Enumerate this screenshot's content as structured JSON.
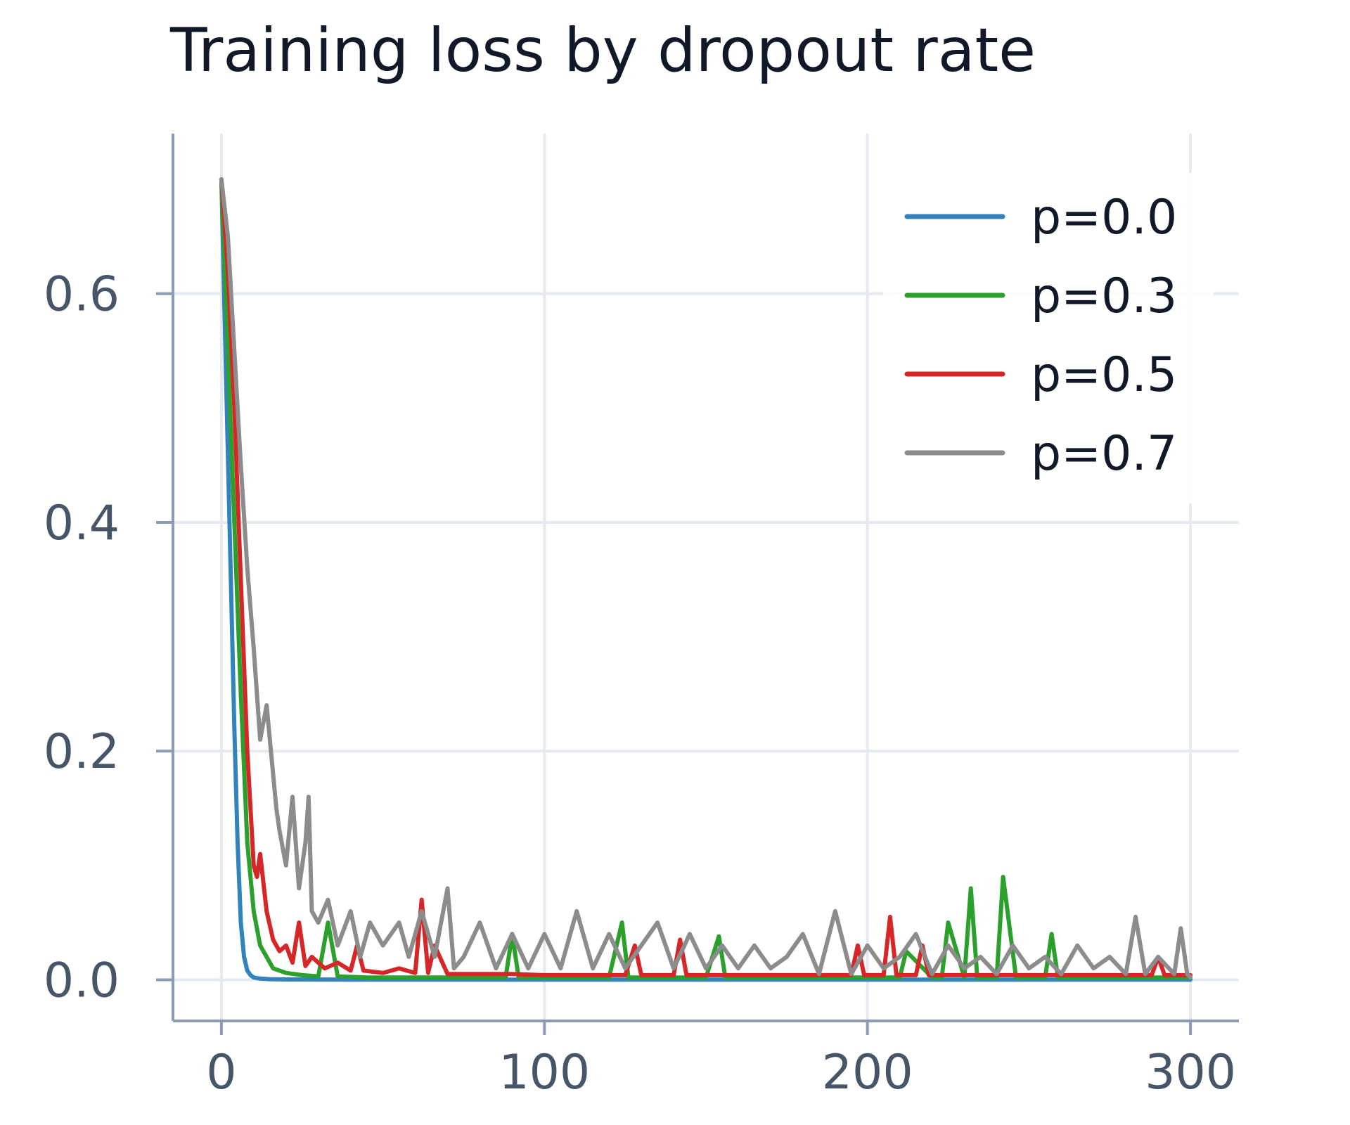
{
  "chart_data": {
    "type": "line",
    "title": "Training loss by dropout rate",
    "xlabel": "",
    "ylabel": "",
    "xlim": [
      -15,
      315
    ],
    "ylim": [
      -0.036,
      0.74
    ],
    "xticks": [
      0,
      100,
      200,
      300
    ],
    "yticks": [
      0.0,
      0.2,
      0.4,
      0.6
    ],
    "xtick_labels": [
      "0",
      "100",
      "200",
      "300"
    ],
    "ytick_labels": [
      "0.0",
      "0.2",
      "0.4",
      "0.6"
    ],
    "grid": true,
    "legend_position": "top-right",
    "series": [
      {
        "name": "p=0.0",
        "color": "#3182bd",
        "x": [
          0,
          1,
          2,
          3,
          4,
          5,
          6,
          7,
          8,
          9,
          10,
          12,
          15,
          20,
          30,
          50,
          100,
          150,
          200,
          250,
          300
        ],
        "y": [
          0.7,
          0.58,
          0.46,
          0.34,
          0.22,
          0.12,
          0.05,
          0.02,
          0.008,
          0.004,
          0.002,
          0.001,
          0.0005,
          0.0003,
          0.0002,
          0.0001,
          0.0001,
          0.0001,
          0.0001,
          0.0001,
          0.0001
        ]
      },
      {
        "name": "p=0.3",
        "color": "#2ca02c",
        "x": [
          0,
          2,
          4,
          6,
          8,
          10,
          12,
          14,
          16,
          18,
          20,
          25,
          30,
          33,
          36,
          45,
          60,
          75,
          88,
          90,
          92,
          100,
          110,
          120,
          124,
          126,
          135,
          145,
          150,
          154,
          156,
          165,
          180,
          195,
          205,
          210,
          212,
          220,
          223,
          225,
          230,
          232,
          234,
          238,
          240,
          242,
          246,
          255,
          257,
          259,
          265,
          275,
          285,
          300
        ],
        "y": [
          0.7,
          0.55,
          0.4,
          0.25,
          0.12,
          0.06,
          0.03,
          0.02,
          0.01,
          0.008,
          0.006,
          0.004,
          0.003,
          0.05,
          0.003,
          0.002,
          0.002,
          0.002,
          0.002,
          0.04,
          0.002,
          0.002,
          0.002,
          0.002,
          0.05,
          0.002,
          0.002,
          0.002,
          0.002,
          0.038,
          0.002,
          0.002,
          0.002,
          0.002,
          0.002,
          0.002,
          0.025,
          0.002,
          0.002,
          0.05,
          0.002,
          0.08,
          0.002,
          0.002,
          0.002,
          0.09,
          0.002,
          0.002,
          0.04,
          0.002,
          0.002,
          0.002,
          0.002,
          0.002
        ]
      },
      {
        "name": "p=0.5",
        "color": "#d62728",
        "x": [
          0,
          2,
          4,
          6,
          8,
          10,
          11,
          12,
          14,
          16,
          18,
          20,
          22,
          24,
          26,
          28,
          32,
          36,
          40,
          42,
          44,
          50,
          55,
          60,
          62,
          64,
          66,
          70,
          80,
          90,
          100,
          110,
          125,
          128,
          130,
          140,
          142,
          144,
          150,
          160,
          175,
          190,
          195,
          197,
          199,
          205,
          207,
          209,
          215,
          217,
          219,
          225,
          240,
          255,
          270,
          288,
          290,
          292,
          300
        ],
        "y": [
          0.7,
          0.62,
          0.5,
          0.35,
          0.2,
          0.1,
          0.09,
          0.11,
          0.06,
          0.035,
          0.025,
          0.03,
          0.015,
          0.05,
          0.012,
          0.02,
          0.01,
          0.015,
          0.008,
          0.03,
          0.008,
          0.006,
          0.01,
          0.006,
          0.07,
          0.006,
          0.03,
          0.005,
          0.005,
          0.005,
          0.004,
          0.004,
          0.004,
          0.03,
          0.004,
          0.004,
          0.035,
          0.004,
          0.004,
          0.004,
          0.004,
          0.004,
          0.004,
          0.03,
          0.004,
          0.004,
          0.055,
          0.004,
          0.004,
          0.03,
          0.004,
          0.004,
          0.004,
          0.004,
          0.004,
          0.004,
          0.02,
          0.004,
          0.004
        ]
      },
      {
        "name": "p=0.7",
        "color": "#8c8c8c",
        "x": [
          0,
          2,
          4,
          6,
          8,
          10,
          12,
          14,
          16,
          17,
          18,
          20,
          22,
          24,
          26,
          27,
          28,
          30,
          33,
          36,
          40,
          43,
          46,
          50,
          55,
          58,
          62,
          66,
          70,
          72,
          75,
          80,
          85,
          90,
          95,
          100,
          105,
          110,
          115,
          120,
          125,
          130,
          135,
          140,
          145,
          150,
          155,
          160,
          165,
          170,
          175,
          180,
          185,
          190,
          195,
          200,
          205,
          210,
          215,
          220,
          225,
          230,
          235,
          240,
          245,
          250,
          255,
          260,
          265,
          270,
          275,
          280,
          283,
          286,
          290,
          295,
          297,
          299,
          300
        ],
        "y": [
          0.7,
          0.65,
          0.55,
          0.45,
          0.36,
          0.29,
          0.21,
          0.24,
          0.18,
          0.15,
          0.13,
          0.1,
          0.16,
          0.08,
          0.12,
          0.16,
          0.06,
          0.05,
          0.07,
          0.03,
          0.06,
          0.02,
          0.05,
          0.03,
          0.05,
          0.02,
          0.06,
          0.02,
          0.08,
          0.01,
          0.02,
          0.05,
          0.01,
          0.04,
          0.01,
          0.04,
          0.01,
          0.06,
          0.01,
          0.04,
          0.01,
          0.03,
          0.05,
          0.01,
          0.04,
          0.01,
          0.03,
          0.01,
          0.03,
          0.01,
          0.02,
          0.04,
          0.005,
          0.06,
          0.005,
          0.03,
          0.01,
          0.02,
          0.04,
          0.005,
          0.03,
          0.01,
          0.02,
          0.005,
          0.03,
          0.01,
          0.02,
          0.005,
          0.03,
          0.01,
          0.02,
          0.005,
          0.055,
          0.005,
          0.02,
          0.005,
          0.045,
          0.005,
          0.002
        ]
      }
    ]
  }
}
